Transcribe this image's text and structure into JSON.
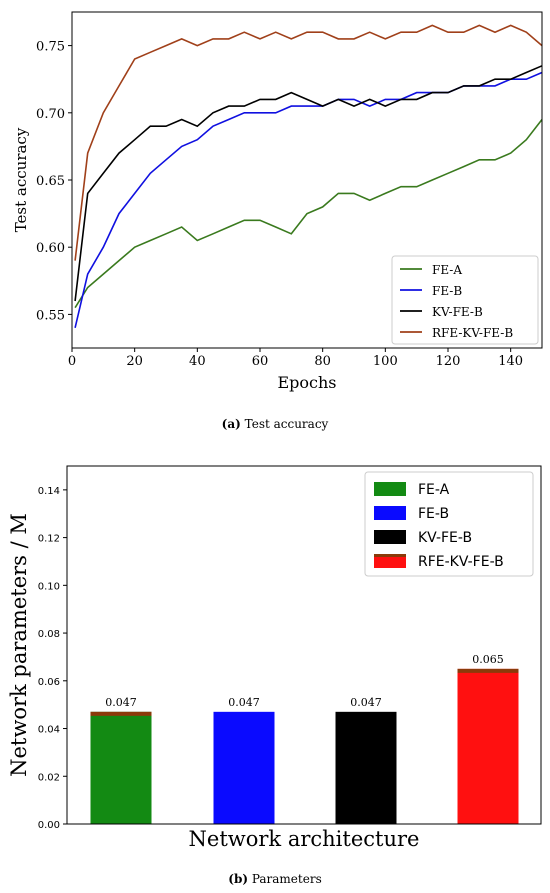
{
  "figure": {
    "caption_a": {
      "label": "(a)",
      "text": "Test accuracy"
    },
    "caption_b": {
      "label": "(b)",
      "text": "Parameters"
    }
  },
  "colors": {
    "FE-A": "#3a7a1e",
    "FE-B": "#1010e0",
    "KV-FE-B": "#000000",
    "RFE-KV-FE-B": "#a0401a",
    "bar_FE-A": "#138a13",
    "bar_FE-B": "#0a0aff",
    "bar_KV-FE-B": "#000000",
    "bar_RFE-KV-FE-B": "#ff1010",
    "bar_cap": "#8b3a0a"
  },
  "chart_data": [
    {
      "type": "line",
      "title": "",
      "xlabel": "Epochs",
      "ylabel": "Test accuracy",
      "xlim": [
        0,
        150
      ],
      "ylim": [
        0.525,
        0.775
      ],
      "xticks": [
        0,
        20,
        40,
        60,
        80,
        100,
        120,
        140
      ],
      "yticks": [
        0.55,
        0.6,
        0.65,
        0.7,
        0.75
      ],
      "ytick_labels": [
        "0.55",
        "0.60",
        "0.65",
        "0.70",
        "0.75"
      ],
      "grid": false,
      "legend_position": "lower-right",
      "x": [
        1,
        5,
        10,
        15,
        20,
        25,
        30,
        35,
        40,
        45,
        50,
        55,
        60,
        65,
        70,
        75,
        80,
        85,
        90,
        95,
        100,
        105,
        110,
        115,
        120,
        125,
        130,
        135,
        140,
        145,
        150
      ],
      "series": [
        {
          "name": "FE-A",
          "values": [
            0.555,
            0.57,
            0.58,
            0.59,
            0.6,
            0.605,
            0.61,
            0.615,
            0.605,
            0.61,
            0.615,
            0.62,
            0.62,
            0.615,
            0.61,
            0.625,
            0.63,
            0.64,
            0.64,
            0.635,
            0.64,
            0.645,
            0.645,
            0.65,
            0.655,
            0.66,
            0.665,
            0.665,
            0.67,
            0.68,
            0.695
          ]
        },
        {
          "name": "FE-B",
          "values": [
            0.54,
            0.58,
            0.6,
            0.625,
            0.64,
            0.655,
            0.665,
            0.675,
            0.68,
            0.69,
            0.695,
            0.7,
            0.7,
            0.7,
            0.705,
            0.705,
            0.705,
            0.71,
            0.71,
            0.705,
            0.71,
            0.71,
            0.715,
            0.715,
            0.715,
            0.72,
            0.72,
            0.72,
            0.725,
            0.725,
            0.73
          ]
        },
        {
          "name": "KV-FE-B",
          "values": [
            0.56,
            0.64,
            0.655,
            0.67,
            0.68,
            0.69,
            0.69,
            0.695,
            0.69,
            0.7,
            0.705,
            0.705,
            0.71,
            0.71,
            0.715,
            0.71,
            0.705,
            0.71,
            0.705,
            0.71,
            0.705,
            0.71,
            0.71,
            0.715,
            0.715,
            0.72,
            0.72,
            0.725,
            0.725,
            0.73,
            0.735
          ]
        },
        {
          "name": "RFE-KV-FE-B",
          "values": [
            0.59,
            0.67,
            0.7,
            0.72,
            0.74,
            0.745,
            0.75,
            0.755,
            0.75,
            0.755,
            0.755,
            0.76,
            0.755,
            0.76,
            0.755,
            0.76,
            0.76,
            0.755,
            0.755,
            0.76,
            0.755,
            0.76,
            0.76,
            0.765,
            0.76,
            0.76,
            0.765,
            0.76,
            0.765,
            0.76,
            0.75
          ]
        }
      ]
    },
    {
      "type": "bar",
      "title": "",
      "xlabel": "Network architecture",
      "ylabel": "Network parameters / M",
      "ylim": [
        0,
        0.15
      ],
      "yticks": [
        0,
        0.02,
        0.04,
        0.06,
        0.08,
        0.1,
        0.12,
        0.14
      ],
      "ytick_labels": [
        "0.00",
        "0.02",
        "0.04",
        "0.06",
        "0.08",
        "0.10",
        "0.12",
        "0.14"
      ],
      "grid": false,
      "legend_position": "top-right",
      "categories": [
        "FE-A",
        "FE-B",
        "KV-FE-B",
        "RFE-KV-FE-B"
      ],
      "values": [
        0.047,
        0.047,
        0.047,
        0.065
      ],
      "data_labels": [
        "0.047",
        "0.047",
        "0.047",
        "0.065"
      ]
    }
  ]
}
